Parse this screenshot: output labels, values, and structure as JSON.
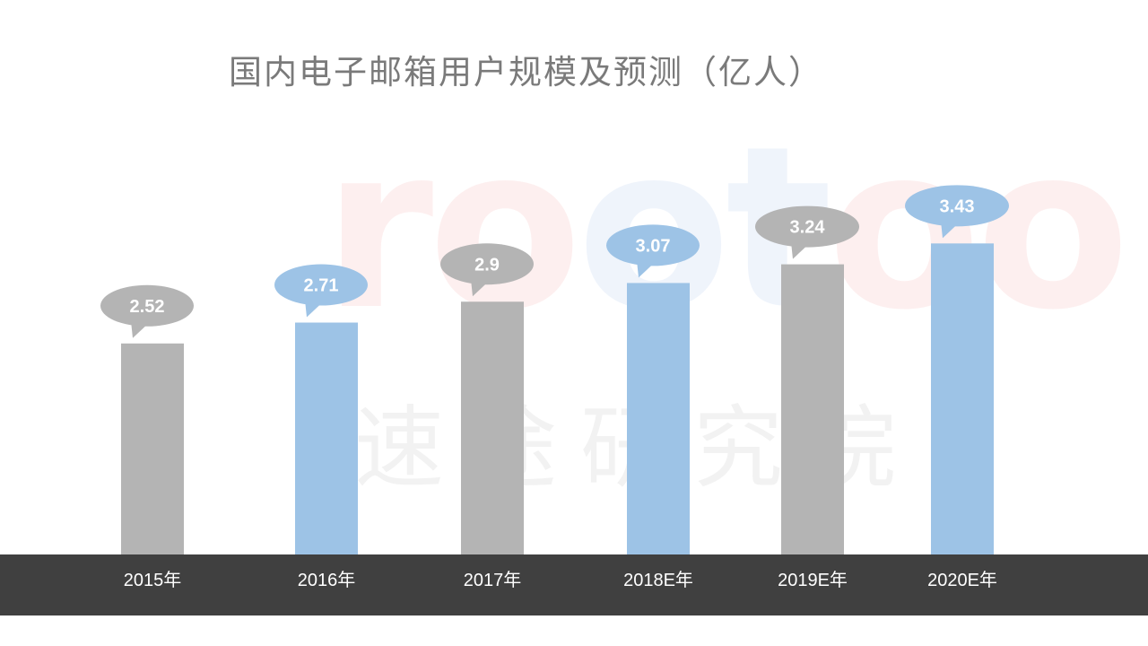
{
  "chart_data": {
    "type": "bar",
    "title": "国内电子邮箱用户规模及预测（亿人）",
    "categories": [
      "2015年",
      "2016年",
      "2017年",
      "2018E年",
      "2019E年",
      "2020E年"
    ],
    "values": [
      2.52,
      2.71,
      2.9,
      3.07,
      3.24,
      3.43
    ],
    "value_labels": [
      "2.52",
      "2.71",
      "2.9",
      "3.07",
      "3.24",
      "3.43"
    ],
    "bar_colors": [
      "#b4b4b4",
      "#9dc3e6",
      "#b4b4b4",
      "#9dc3e6",
      "#b4b4b4",
      "#9dc3e6"
    ],
    "xlabel": "",
    "ylabel": "",
    "grid": false,
    "legend": "none",
    "axis_band_color": "#404040",
    "axis_label_color": "#ffffff"
  },
  "watermark": {
    "letters": "rootoo",
    "chars": "速途研究院"
  }
}
